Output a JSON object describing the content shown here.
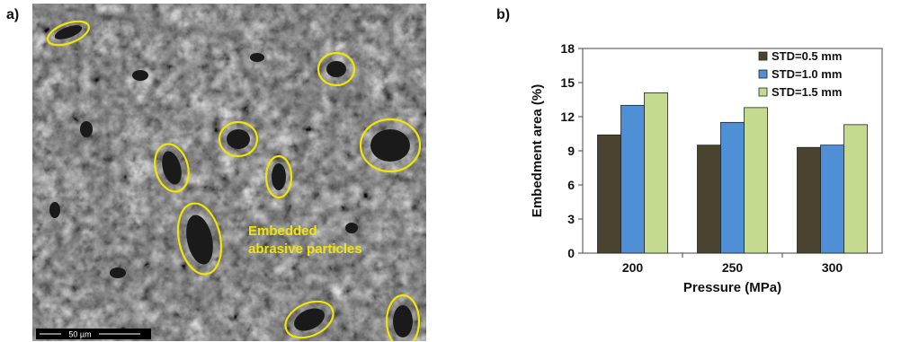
{
  "panel_labels": {
    "a": "a)",
    "b": "b)"
  },
  "micrograph": {
    "annotation_line1": "Embedded",
    "annotation_line2": "abrasive particles",
    "scale_bar_label": "50 µm",
    "highlight_color": "#f2e600"
  },
  "chart_data": {
    "type": "bar",
    "categories": [
      "200",
      "250",
      "300"
    ],
    "series": [
      {
        "name": "STD=0.5 mm",
        "values": [
          10.4,
          9.5,
          9.3
        ],
        "color": "#4a4330"
      },
      {
        "name": "STD=1.0 mm",
        "values": [
          13.0,
          11.5,
          9.5
        ],
        "color": "#4f8fd6"
      },
      {
        "name": "STD=1.5 mm",
        "values": [
          14.1,
          12.8,
          11.3
        ],
        "color": "#c4da8e"
      }
    ],
    "title": "",
    "xlabel": "Pressure (MPa)",
    "ylabel": "Embedment area (%)",
    "ylim": [
      0,
      18
    ],
    "yticks": [
      "0",
      "3",
      "6",
      "9",
      "12",
      "15",
      "18"
    ],
    "grid": false,
    "legend_position": "top-right"
  }
}
